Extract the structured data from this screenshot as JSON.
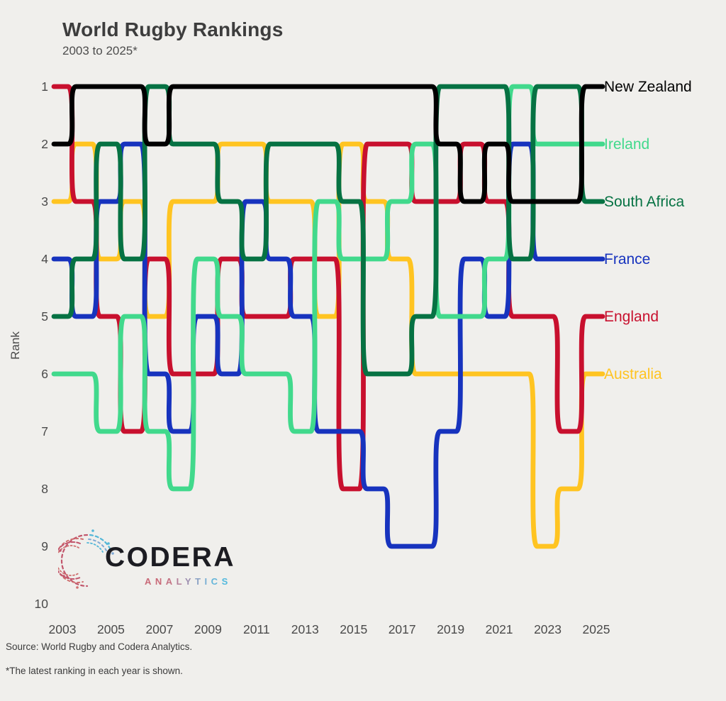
{
  "title": "World Rugby Rankings",
  "subtitle": "2003 to 2025*",
  "source": "Source: World Rugby and Codera Analytics.",
  "footnote": "*The latest ranking in each year is shown.",
  "logo": {
    "brand": "CODERA",
    "brand_sub": "ANALYTICS",
    "sub_letter_colors": [
      "#c96a78",
      "#c96a78",
      "#c47384",
      "#b58099",
      "#9e8fb0",
      "#8ba2c4",
      "#79afd4",
      "#64b5da",
      "#52b9de"
    ]
  },
  "colors": {
    "background": "#F0EFEC",
    "axis_text": "#4a4a4a"
  },
  "chart_data": {
    "type": "line",
    "subtype": "bump-chart",
    "title": "World Rugby Rankings",
    "subtitle": "2003 to 2025*",
    "ylabel": "Rank",
    "x": [
      2003,
      2004,
      2005,
      2006,
      2007,
      2008,
      2009,
      2010,
      2011,
      2012,
      2013,
      2014,
      2015,
      2016,
      2017,
      2018,
      2019,
      2020,
      2021,
      2022,
      2023,
      2024,
      2025
    ],
    "x_tick_labels": [
      "2003",
      "2005",
      "2007",
      "2009",
      "2011",
      "2013",
      "2015",
      "2017",
      "2019",
      "2021",
      "2023",
      "2025"
    ],
    "y_ticks": [
      "1",
      "2",
      "3",
      "4",
      "5",
      "6",
      "7",
      "8",
      "9",
      "10"
    ],
    "ylim": [
      1,
      10
    ],
    "grid": false,
    "legend_position": "right-end-labels",
    "series": [
      {
        "name": "Australia",
        "color": "#FFC421",
        "values": [
          3,
          2,
          4,
          3,
          5,
          3,
          3,
          2,
          2,
          3,
          3,
          5,
          2,
          3,
          4,
          6,
          6,
          6,
          6,
          6,
          9,
          8,
          6
        ]
      },
      {
        "name": "England",
        "color": "#C8102E",
        "values": [
          1,
          3,
          5,
          7,
          4,
          6,
          6,
          4,
          5,
          5,
          4,
          4,
          8,
          2,
          2,
          3,
          3,
          2,
          3,
          5,
          5,
          7,
          5
        ]
      },
      {
        "name": "France",
        "color": "#1733BE",
        "values": [
          4,
          5,
          3,
          2,
          6,
          7,
          5,
          6,
          3,
          4,
          5,
          7,
          7,
          8,
          9,
          9,
          7,
          4,
          5,
          2,
          4,
          4,
          4
        ]
      },
      {
        "name": "Ireland",
        "color": "#41D98C",
        "values": [
          6,
          6,
          7,
          5,
          7,
          8,
          4,
          5,
          6,
          6,
          7,
          3,
          4,
          4,
          3,
          2,
          5,
          5,
          4,
          1,
          2,
          2,
          2
        ]
      },
      {
        "name": "South Africa",
        "color": "#067243",
        "values": [
          5,
          4,
          2,
          4,
          1,
          2,
          2,
          3,
          4,
          2,
          2,
          2,
          3,
          6,
          6,
          5,
          1,
          1,
          1,
          4,
          1,
          1,
          3
        ]
      },
      {
        "name": "New Zealand",
        "color": "#000000",
        "values": [
          2,
          1,
          1,
          1,
          2,
          1,
          1,
          1,
          1,
          1,
          1,
          1,
          1,
          1,
          1,
          1,
          2,
          3,
          2,
          3,
          3,
          3,
          1
        ]
      }
    ]
  }
}
